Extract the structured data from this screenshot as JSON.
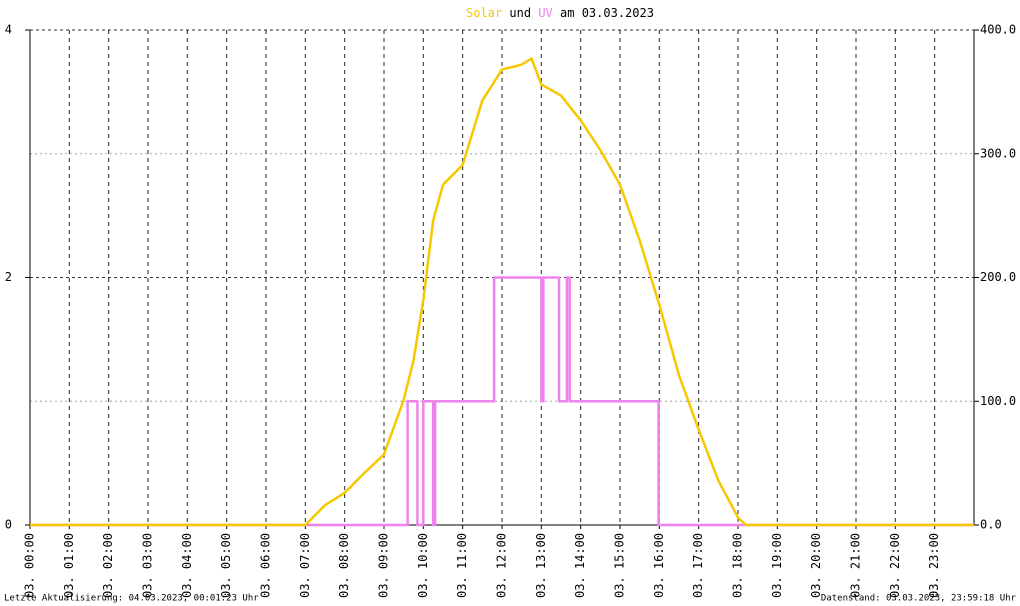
{
  "chart_data": {
    "type": "line",
    "title": [
      "Solar",
      "und",
      "UV",
      "am 03.03.2023"
    ],
    "footer_left": "Letzte Aktualisierung: 04.03.2023, 00:01:23 Uhr",
    "footer_right": "Datenstand: 03.03.2023, 23:59:18 Uhr",
    "xlim": [
      0,
      24
    ],
    "xticks": [
      {
        "value": 0,
        "label": "03. 00:00"
      },
      {
        "value": 1,
        "label": "03. 01:00"
      },
      {
        "value": 2,
        "label": "03. 02:00"
      },
      {
        "value": 3,
        "label": "03. 03:00"
      },
      {
        "value": 4,
        "label": "03. 04:00"
      },
      {
        "value": 5,
        "label": "03. 05:00"
      },
      {
        "value": 6,
        "label": "03. 06:00"
      },
      {
        "value": 7,
        "label": "03. 07:00"
      },
      {
        "value": 8,
        "label": "03. 08:00"
      },
      {
        "value": 9,
        "label": "03. 09:00"
      },
      {
        "value": 10,
        "label": "03. 10:00"
      },
      {
        "value": 11,
        "label": "03. 11:00"
      },
      {
        "value": 12,
        "label": "03. 12:00"
      },
      {
        "value": 13,
        "label": "03. 13:00"
      },
      {
        "value": 14,
        "label": "03. 14:00"
      },
      {
        "value": 15,
        "label": "03. 15:00"
      },
      {
        "value": 16,
        "label": "03. 16:00"
      },
      {
        "value": 17,
        "label": "03. 17:00"
      },
      {
        "value": 18,
        "label": "03. 18:00"
      },
      {
        "value": 19,
        "label": "03. 19:00"
      },
      {
        "value": 20,
        "label": "03. 20:00"
      },
      {
        "value": 21,
        "label": "03. 21:00"
      },
      {
        "value": 22,
        "label": "03. 22:00"
      },
      {
        "value": 23,
        "label": "03. 23:00"
      }
    ],
    "ylim": [
      0,
      4
    ],
    "yticks": [
      0,
      2,
      4
    ],
    "y2lim": [
      0,
      400
    ],
    "y2ticks": [
      {
        "value": 0,
        "label": "0.0"
      },
      {
        "value": 100,
        "label": "100.0"
      },
      {
        "value": 200,
        "label": "200.0"
      },
      {
        "value": 300,
        "label": "300.0"
      },
      {
        "value": 400,
        "label": "400.0"
      }
    ],
    "grid": true,
    "series": [
      {
        "name": "Solar",
        "color": "#f5c800",
        "axis": "y2",
        "x": [
          0,
          7.0,
          7.5,
          8.0,
          8.5,
          9.0,
          9.5,
          9.75,
          10.0,
          10.25,
          10.5,
          11.0,
          11.5,
          12.0,
          12.5,
          12.75,
          13.0,
          13.5,
          14.0,
          14.5,
          15.0,
          15.5,
          16.0,
          16.5,
          17.0,
          17.5,
          18.0,
          18.2,
          24
        ],
        "values": [
          0,
          0,
          16,
          26,
          42,
          57,
          101,
          133,
          182,
          246,
          275,
          291,
          343,
          368,
          372,
          377,
          356,
          347,
          327,
          303,
          275,
          230,
          178,
          121,
          77,
          36,
          6,
          0,
          0
        ]
      },
      {
        "name": "UV",
        "color": "#ee82ee",
        "x": [
          0,
          9.6,
          9.6,
          9.85,
          9.85,
          10.0,
          10.0,
          10.25,
          10.25,
          10.3,
          10.3,
          11.8,
          11.8,
          13.0,
          13.0,
          13.05,
          13.05,
          13.45,
          13.45,
          13.65,
          13.65,
          13.72,
          13.72,
          15.98,
          15.98,
          24
        ],
        "values": [
          0,
          0,
          1,
          1,
          0,
          0,
          1,
          1,
          0,
          0,
          1,
          1,
          2,
          2,
          1,
          1,
          2,
          2,
          1,
          1,
          2,
          2,
          1,
          1,
          0,
          0
        ]
      }
    ]
  }
}
